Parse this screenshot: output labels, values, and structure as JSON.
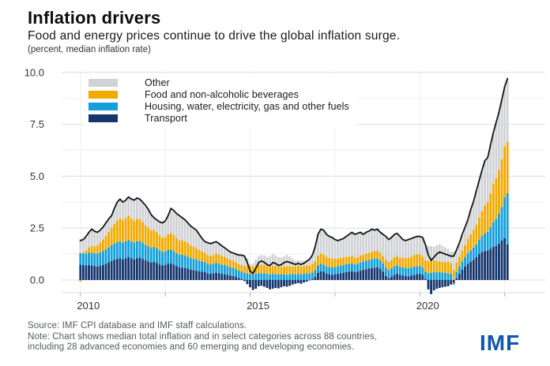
{
  "header": {
    "title": "Inflation drivers",
    "subtitle": "Food and energy prices continue to drive the global inflation surge.",
    "unit_note": "(percent, median inflation rate)"
  },
  "footer": {
    "source_line": "Source: IMF CPI database and IMF staff calculations.",
    "note_line1": "Note: Chart shows median total inflation and in select categories across 88 countries,",
    "note_line2": "including 28 advanced economies and 60 emerging and developing economies."
  },
  "logo": {
    "text": "IMF",
    "color": "#1356a8"
  },
  "colors": {
    "other": "#d0d3d5",
    "food": "#f2a900",
    "housing": "#149fdb",
    "transport": "#15356e",
    "total_line": "#141414",
    "grid_major": "#dcdfe1",
    "grid_minor": "#eef0f1",
    "axis_text": "#333333",
    "tick": "#b0b4b8"
  },
  "chart_data": {
    "type": "bar",
    "subtype": "stacked-monthly-bars-with-total-line",
    "title": "Inflation drivers",
    "xlabel": "",
    "ylabel": "percent, median inflation rate",
    "x_start": "2010-01",
    "x_end": "2022-08",
    "months": 152,
    "x_tick_labels": [
      "2010",
      "2015",
      "2020"
    ],
    "x_tick_month_index": [
      0,
      60,
      120
    ],
    "grid_month_index": [
      0,
      30,
      60,
      90,
      120,
      150
    ],
    "ylim": [
      -0.61,
      10.15
    ],
    "yticks": [
      0.0,
      2.5,
      5.0,
      7.5,
      10.0
    ],
    "ytick_labels": [
      "0.0",
      "2.5",
      "5.0",
      "7.5",
      "10.0"
    ],
    "minor_ytick_step": 1.25,
    "legend_position": "top-left-inside",
    "series": [
      {
        "name": "Transport",
        "color_key": "transport",
        "values": [
          0.75,
          0.72,
          0.7,
          0.72,
          0.7,
          0.68,
          0.65,
          0.68,
          0.72,
          0.78,
          0.85,
          0.92,
          0.98,
          1.02,
          1.05,
          1.0,
          1.05,
          1.1,
          1.05,
          1.0,
          1.05,
          1.08,
          1.02,
          0.95,
          0.9,
          0.85,
          0.88,
          0.82,
          0.75,
          0.7,
          0.72,
          0.78,
          0.8,
          0.75,
          0.68,
          0.62,
          0.6,
          0.58,
          0.55,
          0.5,
          0.48,
          0.45,
          0.42,
          0.4,
          0.38,
          0.32,
          0.3,
          0.32,
          0.35,
          0.32,
          0.3,
          0.28,
          0.25,
          0.22,
          0.2,
          0.15,
          0.1,
          0.05,
          -0.05,
          -0.2,
          -0.35,
          -0.48,
          -0.42,
          -0.3,
          -0.28,
          -0.32,
          -0.38,
          -0.45,
          -0.42,
          -0.38,
          -0.4,
          -0.35,
          -0.3,
          -0.32,
          -0.28,
          -0.22,
          -0.18,
          -0.15,
          -0.18,
          -0.12,
          -0.08,
          -0.02,
          0.05,
          0.15,
          0.35,
          0.42,
          0.4,
          0.32,
          0.28,
          0.25,
          0.28,
          0.3,
          0.32,
          0.35,
          0.38,
          0.4,
          0.42,
          0.38,
          0.4,
          0.45,
          0.5,
          0.52,
          0.55,
          0.58,
          0.6,
          0.62,
          0.55,
          0.4,
          0.2,
          0.1,
          0.15,
          0.25,
          0.3,
          0.25,
          0.22,
          0.2,
          0.18,
          0.22,
          0.25,
          0.28,
          0.3,
          0.25,
          0.05,
          -0.45,
          -0.68,
          -0.5,
          -0.42,
          -0.38,
          -0.35,
          -0.32,
          -0.3,
          -0.22,
          -0.12,
          0.08,
          0.3,
          0.5,
          0.65,
          0.78,
          0.88,
          0.98,
          1.1,
          1.25,
          1.35,
          1.4,
          1.42,
          1.5,
          1.6,
          1.65,
          1.75,
          1.9,
          2.02,
          1.71
        ]
      },
      {
        "name": "Housing, water, electricity, gas and other fuels",
        "color_key": "housing",
        "values": [
          0.55,
          0.56,
          0.58,
          0.6,
          0.62,
          0.6,
          0.62,
          0.65,
          0.68,
          0.7,
          0.72,
          0.75,
          0.78,
          0.8,
          0.82,
          0.8,
          0.82,
          0.85,
          0.82,
          0.8,
          0.82,
          0.8,
          0.78,
          0.75,
          0.72,
          0.7,
          0.72,
          0.7,
          0.68,
          0.65,
          0.66,
          0.68,
          0.66,
          0.64,
          0.62,
          0.6,
          0.62,
          0.6,
          0.58,
          0.56,
          0.55,
          0.54,
          0.52,
          0.5,
          0.48,
          0.46,
          0.45,
          0.46,
          0.48,
          0.46,
          0.45,
          0.44,
          0.42,
          0.4,
          0.4,
          0.38,
          0.36,
          0.35,
          0.34,
          0.32,
          0.3,
          0.28,
          0.3,
          0.32,
          0.33,
          0.32,
          0.3,
          0.28,
          0.3,
          0.28,
          0.27,
          0.28,
          0.28,
          0.26,
          0.28,
          0.3,
          0.28,
          0.3,
          0.28,
          0.3,
          0.32,
          0.3,
          0.32,
          0.33,
          0.35,
          0.36,
          0.35,
          0.34,
          0.35,
          0.36,
          0.35,
          0.36,
          0.38,
          0.36,
          0.38,
          0.38,
          0.38,
          0.36,
          0.38,
          0.4,
          0.4,
          0.42,
          0.4,
          0.42,
          0.44,
          0.42,
          0.4,
          0.4,
          0.4,
          0.38,
          0.4,
          0.42,
          0.4,
          0.38,
          0.4,
          0.38,
          0.4,
          0.38,
          0.4,
          0.38,
          0.38,
          0.36,
          0.35,
          0.32,
          0.35,
          0.38,
          0.36,
          0.38,
          0.36,
          0.35,
          0.33,
          0.3,
          -0.1,
          0.3,
          0.35,
          0.4,
          0.45,
          0.52,
          0.55,
          0.58,
          0.62,
          0.7,
          0.78,
          0.85,
          0.9,
          1.05,
          1.2,
          1.3,
          1.45,
          1.62,
          1.95,
          2.47
        ]
      },
      {
        "name": "Food and non-alcoholic beverages",
        "color_key": "food",
        "values": [
          -0.07,
          0.05,
          0.15,
          0.25,
          0.32,
          0.35,
          0.4,
          0.48,
          0.55,
          0.65,
          0.75,
          0.85,
          0.95,
          1.05,
          1.1,
          1.08,
          1.12,
          1.15,
          1.1,
          1.05,
          1.08,
          1.05,
          1.0,
          0.95,
          0.9,
          0.85,
          0.82,
          0.78,
          0.72,
          0.68,
          0.7,
          0.75,
          0.8,
          0.78,
          0.72,
          0.68,
          0.7,
          0.68,
          0.65,
          0.6,
          0.58,
          0.55,
          0.52,
          0.48,
          0.45,
          0.42,
          0.4,
          0.42,
          0.45,
          0.44,
          0.42,
          0.4,
          0.38,
          0.36,
          0.34,
          0.32,
          0.3,
          0.32,
          0.34,
          0.36,
          0.38,
          0.36,
          0.38,
          0.4,
          0.42,
          0.4,
          0.38,
          0.36,
          0.38,
          0.4,
          0.38,
          0.36,
          0.38,
          0.4,
          0.38,
          0.36,
          0.38,
          0.4,
          0.38,
          0.36,
          0.38,
          0.4,
          0.42,
          0.44,
          0.48,
          0.5,
          0.48,
          0.46,
          0.44,
          0.42,
          0.4,
          0.38,
          0.36,
          0.38,
          0.36,
          0.35,
          0.36,
          0.34,
          0.32,
          0.34,
          0.32,
          0.34,
          0.36,
          0.35,
          0.36,
          0.38,
          0.36,
          0.35,
          0.38,
          0.4,
          0.42,
          0.44,
          0.46,
          0.44,
          0.46,
          0.48,
          0.5,
          0.52,
          0.55,
          0.58,
          0.55,
          0.52,
          0.55,
          0.6,
          0.62,
          0.58,
          0.55,
          0.52,
          0.5,
          0.52,
          0.55,
          0.52,
          0.48,
          0.45,
          0.48,
          0.52,
          0.58,
          0.68,
          0.78,
          0.85,
          0.95,
          1.05,
          1.2,
          1.35,
          1.45,
          1.62,
          1.85,
          1.95,
          2.1,
          2.3,
          2.48,
          2.47
        ]
      },
      {
        "name": "Other",
        "color_key": "other",
        "values": [
          0.67,
          0.62,
          0.67,
          0.73,
          0.81,
          0.72,
          0.63,
          0.59,
          0.6,
          0.62,
          0.63,
          0.58,
          0.74,
          0.88,
          0.93,
          0.87,
          0.86,
          0.9,
          0.93,
          1.0,
          1.0,
          0.97,
          0.95,
          0.95,
          0.88,
          0.75,
          0.58,
          0.6,
          0.65,
          0.72,
          0.77,
          0.89,
          1.19,
          1.18,
          1.18,
          1.2,
          1.08,
          1.04,
          0.97,
          0.94,
          0.89,
          0.86,
          0.74,
          0.62,
          0.54,
          0.6,
          0.6,
          0.6,
          0.57,
          0.53,
          0.48,
          0.43,
          0.4,
          0.37,
          0.36,
          0.4,
          0.44,
          0.48,
          0.52,
          0.37,
          0.1,
          0.15,
          0.3,
          0.42,
          0.45,
          0.45,
          0.44,
          0.5,
          0.58,
          0.5,
          0.45,
          0.45,
          0.48,
          0.55,
          0.47,
          0.36,
          0.27,
          0.25,
          0.27,
          0.26,
          0.28,
          0.32,
          0.41,
          0.68,
          1.02,
          1.17,
          1.17,
          1.08,
          1.03,
          1.02,
          0.92,
          0.86,
          0.89,
          0.91,
          0.98,
          1.07,
          1.14,
          1.12,
          1.15,
          1.11,
          0.98,
          1.02,
          1.04,
          1.1,
          1.0,
          1.03,
          0.99,
          1.05,
          1.12,
          1.07,
          1.08,
          1.09,
          1.09,
          1.03,
          0.87,
          0.84,
          0.87,
          0.88,
          0.85,
          0.86,
          0.87,
          0.92,
          0.75,
          0.73,
          0.66,
          0.64,
          0.76,
          0.83,
          0.79,
          0.7,
          0.62,
          0.55,
          0.89,
          0.62,
          0.67,
          0.78,
          0.87,
          0.92,
          1.19,
          1.39,
          1.63,
          1.8,
          1.97,
          2.15,
          2.13,
          2.33,
          2.45,
          2.7,
          2.8,
          2.88,
          2.85,
          3.05
        ]
      }
    ],
    "total_line": {
      "name": "Total (median inflation)",
      "values": [
        1.9,
        1.95,
        2.1,
        2.3,
        2.45,
        2.35,
        2.3,
        2.4,
        2.55,
        2.75,
        2.95,
        3.1,
        3.45,
        3.75,
        3.9,
        3.75,
        3.85,
        4.0,
        3.9,
        3.85,
        3.95,
        3.9,
        3.75,
        3.6,
        3.4,
        3.15,
        3.0,
        2.9,
        2.8,
        2.75,
        2.85,
        3.1,
        3.45,
        3.35,
        3.2,
        3.1,
        3.0,
        2.9,
        2.75,
        2.6,
        2.5,
        2.4,
        2.2,
        2.0,
        1.85,
        1.8,
        1.75,
        1.8,
        1.85,
        1.75,
        1.65,
        1.55,
        1.45,
        1.35,
        1.3,
        1.25,
        1.2,
        1.2,
        1.15,
        0.85,
        0.43,
        0.31,
        0.56,
        0.84,
        0.92,
        0.85,
        0.74,
        0.69,
        0.84,
        0.8,
        0.7,
        0.74,
        0.84,
        0.89,
        0.85,
        0.8,
        0.75,
        0.8,
        0.75,
        0.8,
        0.9,
        1.0,
        1.2,
        1.6,
        2.2,
        2.45,
        2.4,
        2.2,
        2.1,
        2.05,
        1.95,
        1.9,
        1.95,
        2.0,
        2.1,
        2.2,
        2.3,
        2.2,
        2.25,
        2.3,
        2.2,
        2.3,
        2.35,
        2.45,
        2.4,
        2.45,
        2.3,
        2.2,
        2.1,
        1.95,
        2.05,
        2.2,
        2.25,
        2.1,
        1.95,
        1.9,
        1.95,
        2.0,
        2.05,
        2.1,
        2.1,
        2.05,
        1.7,
        1.2,
        0.95,
        1.1,
        1.25,
        1.35,
        1.3,
        1.25,
        1.2,
        1.15,
        1.15,
        1.45,
        1.8,
        2.2,
        2.55,
        2.9,
        3.4,
        3.8,
        4.3,
        4.8,
        5.3,
        5.75,
        5.9,
        6.5,
        7.1,
        7.6,
        8.1,
        8.7,
        9.3,
        9.7
      ]
    },
    "legend_order": [
      "Other",
      "Food and non-alcoholic beverages",
      "Housing, water, electricity, gas and other fuels",
      "Transport"
    ]
  }
}
